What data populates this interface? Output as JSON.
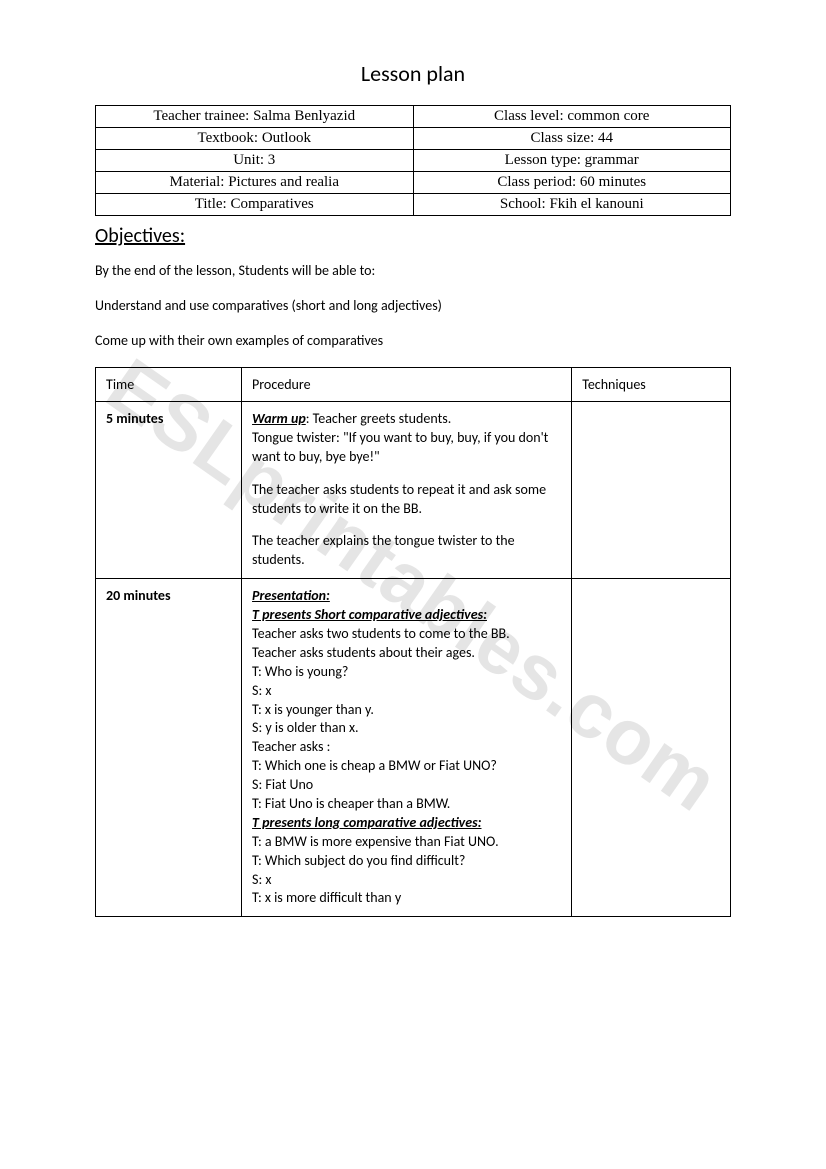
{
  "document_title": "Lesson plan",
  "watermark_text": "ESLprintables.com",
  "header": {
    "rows": [
      {
        "left": "Teacher trainee: Salma Benlyazid",
        "right": "Class level: common core"
      },
      {
        "left": "Textbook: Outlook",
        "right": "Class size: 44"
      },
      {
        "left": "Unit: 3",
        "right": "Lesson type: grammar"
      },
      {
        "left": "Material: Pictures and realia",
        "right": "Class period: 60 minutes"
      },
      {
        "left": "Title: Comparatives",
        "right": "School: Fkih el kanouni"
      }
    ]
  },
  "objectives": {
    "heading": "Objectives:",
    "intro": "By the end of the lesson, Students will be able to:",
    "items": [
      "Understand and use comparatives (short and long adjectives)",
      "Come up with their own examples of comparatives"
    ]
  },
  "procedure_table": {
    "headers": {
      "time": "Time",
      "procedure": "Procedure",
      "techniques": "Techniques"
    },
    "rows": [
      {
        "time": "5 minutes",
        "warmup_label": "Warm up",
        "warmup_intro": ": Teacher greets students.",
        "warmup_tongue": "Tongue twister: \"If you want to buy, buy, if you don't want to buy, bye bye!\"",
        "warmup_repeat": "The teacher asks students to repeat it and ask some students to write it on the BB.",
        "warmup_explain": "The teacher explains the tongue twister to the students.",
        "techniques": ""
      },
      {
        "time": "20 minutes",
        "presentation_label": "Presentation:",
        "short_label": "T presents Short comparative adjectives:",
        "short_lines": [
          "Teacher asks two students to come to the BB.",
          "Teacher asks students about their ages.",
          "T: Who is young?",
          "S: x",
          "T: x is younger than y.",
          "S: y is older than x.",
          "Teacher asks :",
          "T: Which one is cheap a BMW or Fiat UNO?",
          "S: Fiat Uno",
          "T: Fiat Uno is cheaper than a BMW."
        ],
        "long_label": "T presents long comparative adjectives:",
        "long_lines": [
          "T: a BMW is more expensive than Fiat UNO.",
          "T: Which subject do you find difficult?",
          "S: x",
          "T: x is more difficult than y"
        ],
        "techniques": ""
      }
    ]
  }
}
